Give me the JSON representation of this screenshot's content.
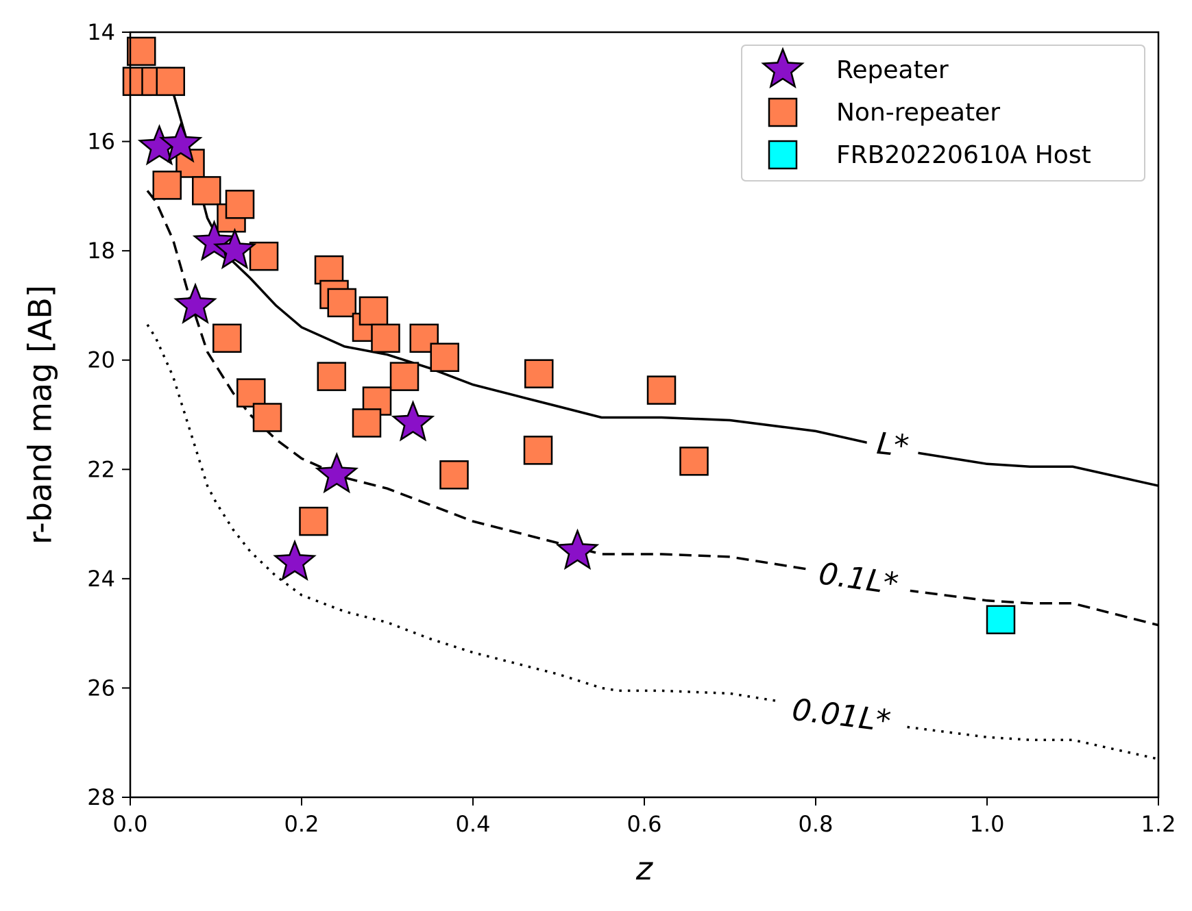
{
  "chart_data": {
    "type": "scatter",
    "title": "",
    "xlabel": "z",
    "ylabel": "r-band mag [AB]",
    "xlim": [
      0.0,
      1.2
    ],
    "ylim": [
      28,
      14
    ],
    "y_inverted": true,
    "x_ticks": [
      "0.0",
      "0.2",
      "0.4",
      "0.6",
      "0.8",
      "1.0",
      "1.2"
    ],
    "y_ticks": [
      "14",
      "16",
      "18",
      "20",
      "22",
      "24",
      "26",
      "28"
    ],
    "grid": false,
    "legend_position": "top-right",
    "colors": {
      "repeater": "#8a10c8",
      "non_repeater": "#ff7f4f",
      "host": "#00ffff",
      "edge": "#000000"
    },
    "series": [
      {
        "name": "Repeater",
        "marker": "star",
        "points": [
          {
            "x": 0.034,
            "y": 16.1
          },
          {
            "x": 0.059,
            "y": 16.05
          },
          {
            "x": 0.098,
            "y": 17.85
          },
          {
            "x": 0.122,
            "y": 18.0
          },
          {
            "x": 0.076,
            "y": 19.0
          },
          {
            "x": 0.241,
            "y": 22.1
          },
          {
            "x": 0.192,
            "y": 23.7
          },
          {
            "x": 0.33,
            "y": 21.15
          },
          {
            "x": 0.522,
            "y": 23.5
          }
        ]
      },
      {
        "name": "Non-repeater",
        "marker": "square",
        "points": [
          {
            "x": 0.013,
            "y": 14.35
          },
          {
            "x": 0.008,
            "y": 14.9
          },
          {
            "x": 0.03,
            "y": 14.9
          },
          {
            "x": 0.047,
            "y": 14.9
          },
          {
            "x": 0.07,
            "y": 16.4
          },
          {
            "x": 0.043,
            "y": 16.8
          },
          {
            "x": 0.089,
            "y": 16.9
          },
          {
            "x": 0.118,
            "y": 17.4
          },
          {
            "x": 0.128,
            "y": 17.15
          },
          {
            "x": 0.156,
            "y": 18.1
          },
          {
            "x": 0.232,
            "y": 18.35
          },
          {
            "x": 0.238,
            "y": 18.8
          },
          {
            "x": 0.247,
            "y": 18.95
          },
          {
            "x": 0.276,
            "y": 19.4
          },
          {
            "x": 0.284,
            "y": 19.1
          },
          {
            "x": 0.298,
            "y": 19.6
          },
          {
            "x": 0.343,
            "y": 19.6
          },
          {
            "x": 0.367,
            "y": 19.95
          },
          {
            "x": 0.113,
            "y": 19.6
          },
          {
            "x": 0.235,
            "y": 20.3
          },
          {
            "x": 0.32,
            "y": 20.3
          },
          {
            "x": 0.288,
            "y": 20.75
          },
          {
            "x": 0.276,
            "y": 21.15
          },
          {
            "x": 0.141,
            "y": 20.6
          },
          {
            "x": 0.16,
            "y": 21.05
          },
          {
            "x": 0.378,
            "y": 22.1
          },
          {
            "x": 0.477,
            "y": 20.25
          },
          {
            "x": 0.476,
            "y": 21.65
          },
          {
            "x": 0.62,
            "y": 20.55
          },
          {
            "x": 0.658,
            "y": 21.85
          },
          {
            "x": 0.214,
            "y": 22.95
          }
        ]
      },
      {
        "name": "FRB20220610A Host",
        "marker": "square",
        "points": [
          {
            "x": 1.016,
            "y": 24.75
          }
        ]
      }
    ],
    "curves": [
      {
        "name": "L*",
        "style": "solid",
        "x": [
          0.02,
          0.03,
          0.05,
          0.07,
          0.09,
          0.1,
          0.12,
          0.14,
          0.17,
          0.2,
          0.25,
          0.3,
          0.35,
          0.4,
          0.45,
          0.5,
          0.55,
          0.57,
          0.62,
          0.7,
          0.8,
          0.9,
          1.0,
          1.05,
          1.1,
          1.2
        ],
        "y": [
          14.7,
          14.8,
          15.1,
          16.2,
          17.4,
          17.7,
          18.2,
          18.5,
          19.0,
          19.4,
          19.75,
          19.9,
          20.15,
          20.45,
          20.65,
          20.85,
          21.05,
          21.05,
          21.05,
          21.1,
          21.3,
          21.65,
          21.9,
          21.95,
          21.95,
          22.3
        ]
      },
      {
        "name": "0.1L*",
        "style": "dashed",
        "x": [
          0.02,
          0.03,
          0.05,
          0.07,
          0.09,
          0.1,
          0.12,
          0.14,
          0.17,
          0.2,
          0.25,
          0.3,
          0.35,
          0.4,
          0.45,
          0.5,
          0.55,
          0.57,
          0.62,
          0.7,
          0.8,
          0.9,
          1.0,
          1.05,
          1.1,
          1.2
        ],
        "y": [
          16.9,
          17.1,
          17.8,
          18.9,
          19.85,
          20.1,
          20.6,
          21.0,
          21.45,
          21.8,
          22.15,
          22.35,
          22.65,
          22.95,
          23.15,
          23.35,
          23.55,
          23.55,
          23.55,
          23.6,
          23.85,
          24.2,
          24.4,
          24.45,
          24.45,
          24.85
        ]
      },
      {
        "name": "0.01L*",
        "style": "dotted",
        "x": [
          0.02,
          0.03,
          0.05,
          0.07,
          0.09,
          0.1,
          0.12,
          0.14,
          0.17,
          0.2,
          0.25,
          0.3,
          0.35,
          0.4,
          0.45,
          0.5,
          0.55,
          0.57,
          0.62,
          0.7,
          0.8,
          0.9,
          1.0,
          1.05,
          1.1,
          1.2
        ],
        "y": [
          19.35,
          19.6,
          20.3,
          21.3,
          22.3,
          22.6,
          23.1,
          23.5,
          23.95,
          24.3,
          24.6,
          24.8,
          25.1,
          25.35,
          25.55,
          25.75,
          26.0,
          26.05,
          26.05,
          26.1,
          26.35,
          26.7,
          26.9,
          26.95,
          26.95,
          27.3
        ]
      }
    ],
    "curve_labels": [
      {
        "text": "L*",
        "x": 0.89,
        "y": 21.55,
        "rotation": 6
      },
      {
        "text": "0.1L*",
        "x": 0.85,
        "y": 24.0,
        "rotation": 8
      },
      {
        "text": "0.01L*",
        "x": 0.83,
        "y": 26.5,
        "rotation": 7
      }
    ],
    "legend": [
      "Repeater",
      "Non-repeater",
      "FRB20220610A Host"
    ]
  }
}
